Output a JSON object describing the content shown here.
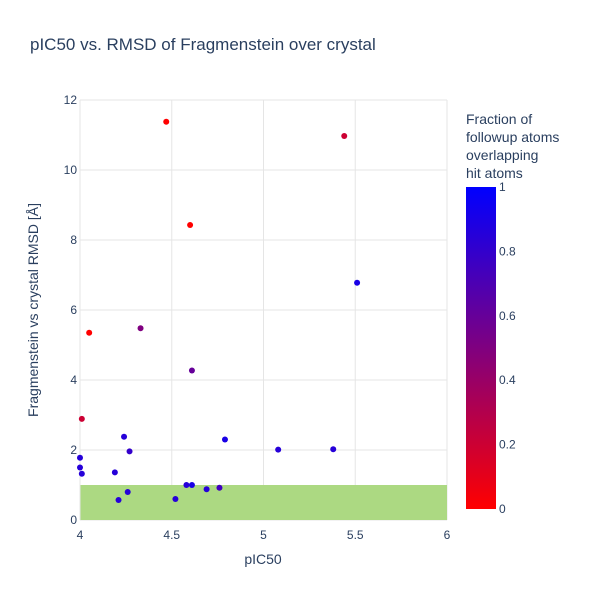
{
  "chart_data": {
    "type": "scatter",
    "title": "pIC50 vs. RMSD of Fragmenstein over crystal",
    "xlabel": "pIC50",
    "ylabel": "Fragmenstein vs crystal RMSD [Å]",
    "xlim": [
      4,
      6
    ],
    "ylim": [
      0,
      12
    ],
    "x_ticks": [
      "4",
      "4.5",
      "5",
      "5.5",
      "6"
    ],
    "y_ticks": [
      "0",
      "2",
      "4",
      "6",
      "8",
      "10",
      "12"
    ],
    "grid": "on",
    "shaded_band": {
      "y_range": [
        0,
        1
      ],
      "color": "#acd982"
    },
    "colorbar": {
      "title": [
        "Fraction of",
        "followup atoms",
        "overlapping",
        "hit atoms"
      ],
      "range": [
        0,
        1
      ],
      "ticks": [
        "0",
        "0.2",
        "0.4",
        "0.6",
        "0.8",
        "1"
      ],
      "colors": [
        "#ff0000",
        "#0000ff"
      ]
    },
    "points": [
      {
        "x": 4.47,
        "y": 11.38,
        "c": 0.0
      },
      {
        "x": 5.44,
        "y": 10.97,
        "c": 0.2
      },
      {
        "x": 4.6,
        "y": 8.43,
        "c": 0.0
      },
      {
        "x": 5.51,
        "y": 6.78,
        "c": 0.9
      },
      {
        "x": 4.05,
        "y": 5.35,
        "c": 0.0
      },
      {
        "x": 4.33,
        "y": 5.48,
        "c": 0.5
      },
      {
        "x": 4.61,
        "y": 4.27,
        "c": 0.6
      },
      {
        "x": 4.01,
        "y": 2.89,
        "c": 0.2
      },
      {
        "x": 4.24,
        "y": 2.38,
        "c": 0.85
      },
      {
        "x": 4.79,
        "y": 2.3,
        "c": 0.9
      },
      {
        "x": 4.27,
        "y": 1.96,
        "c": 0.8
      },
      {
        "x": 5.08,
        "y": 2.01,
        "c": 0.85
      },
      {
        "x": 5.38,
        "y": 2.02,
        "c": 0.85
      },
      {
        "x": 4.0,
        "y": 1.78,
        "c": 0.85
      },
      {
        "x": 4.0,
        "y": 1.5,
        "c": 0.85
      },
      {
        "x": 4.01,
        "y": 1.32,
        "c": 0.85
      },
      {
        "x": 4.19,
        "y": 1.36,
        "c": 0.85
      },
      {
        "x": 4.58,
        "y": 1.0,
        "c": 0.85
      },
      {
        "x": 4.61,
        "y": 1.0,
        "c": 0.9
      },
      {
        "x": 4.69,
        "y": 0.88,
        "c": 0.85
      },
      {
        "x": 4.76,
        "y": 0.92,
        "c": 0.75
      },
      {
        "x": 4.26,
        "y": 0.8,
        "c": 0.85
      },
      {
        "x": 4.21,
        "y": 0.57,
        "c": 0.85
      },
      {
        "x": 4.52,
        "y": 0.6,
        "c": 0.85
      }
    ]
  }
}
